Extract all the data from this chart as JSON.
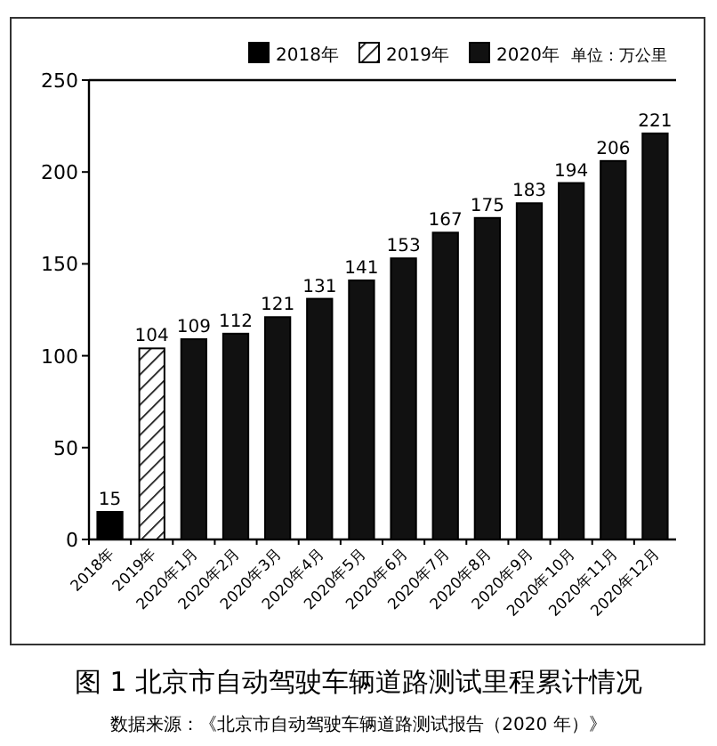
{
  "chart_data": {
    "type": "bar",
    "title": "图 1 北京市自动驾驶车辆道路测试里程累计情况",
    "annotations": [
      "单位：万公里",
      "数据来源：《北京市自动驾驶车辆道路测试报告（2020 年）》"
    ],
    "categories": [
      "2018年",
      "2019年",
      "2020年1月",
      "2020年2月",
      "2020年3月",
      "2020年4月",
      "2020年5月",
      "2020年6月",
      "2020年7月",
      "2020年8月",
      "2020年9月",
      "2020年10月",
      "2020年11月",
      "2020年12月"
    ],
    "series": [
      {
        "name": "2018年",
        "color": "#000000",
        "values": [
          15,
          null,
          null,
          null,
          null,
          null,
          null,
          null,
          null,
          null,
          null,
          null,
          null,
          null
        ]
      },
      {
        "name": "2019年",
        "color": "#000000",
        "values": [
          null,
          104,
          null,
          null,
          null,
          null,
          null,
          null,
          null,
          null,
          null,
          null,
          null,
          null
        ]
      },
      {
        "name": "2020年",
        "color": "#111111",
        "values": [
          null,
          null,
          109,
          112,
          121,
          131,
          141,
          153,
          167,
          175,
          183,
          194,
          206,
          221
        ]
      }
    ],
    "ylim": [
      0,
      250
    ],
    "yticks": [
      0,
      50,
      100,
      150,
      200,
      250
    ],
    "data_labels": true,
    "legend": "top right",
    "grid": false
  }
}
